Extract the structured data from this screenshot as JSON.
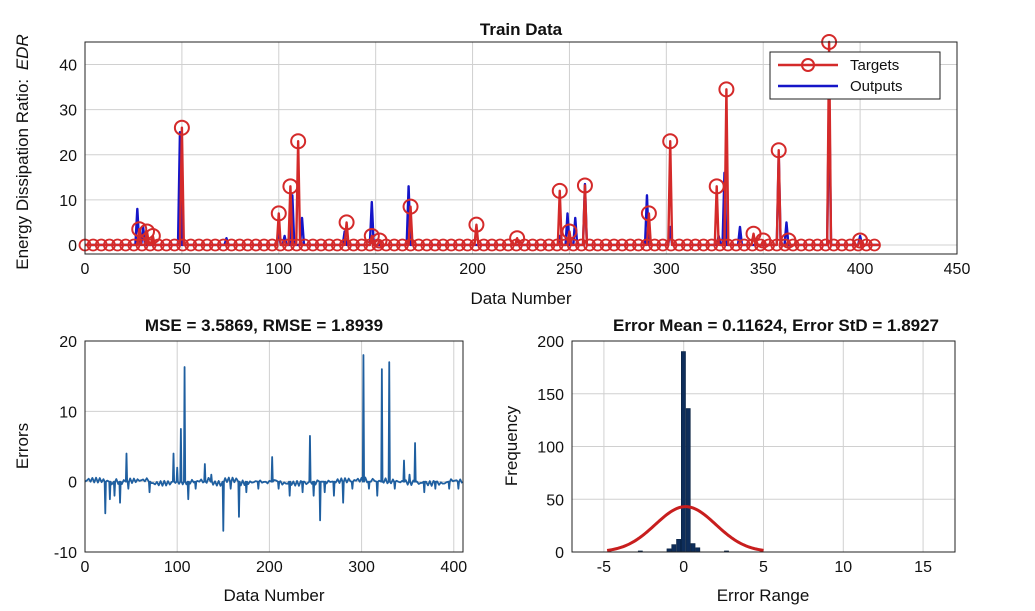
{
  "colors": {
    "targets": "#d42a2a",
    "outputs": "#1515c8",
    "errors": "#1f5fa0",
    "hist": "#0e2d5a",
    "fit": "#c81e1e",
    "grid": "#d0d0d0"
  },
  "chart_data": [
    {
      "type": "line",
      "title": "Train Data",
      "xlabel": "Data Number",
      "ylabel": "Energy Dissipation Ratio:",
      "ylabel_symbol": "EDR",
      "xlim": [
        0,
        450
      ],
      "ylim": [
        -2,
        45
      ],
      "xticks": [
        "0",
        "50",
        "100",
        "150",
        "200",
        "250",
        "300",
        "350",
        "400",
        "450"
      ],
      "yticks": [
        "0",
        "10",
        "20",
        "30",
        "40"
      ],
      "grid": true,
      "legend_position": "top-right",
      "series": [
        {
          "name": "Targets",
          "marker": "circle",
          "points": [
            [
              28,
              3.5
            ],
            [
              32,
              3
            ],
            [
              35,
              2
            ],
            [
              50,
              26
            ],
            [
              100,
              7
            ],
            [
              106,
              13
            ],
            [
              110,
              23
            ],
            [
              135,
              5
            ],
            [
              148,
              2
            ],
            [
              152,
              1
            ],
            [
              168,
              8.5
            ],
            [
              202,
              4.5
            ],
            [
              223,
              1.5
            ],
            [
              245,
              12
            ],
            [
              250,
              3
            ],
            [
              258,
              13.2
            ],
            [
              291,
              7
            ],
            [
              302,
              23
            ],
            [
              326,
              13
            ],
            [
              331,
              34.5
            ],
            [
              345,
              2.5
            ],
            [
              350,
              1
            ],
            [
              358,
              21
            ],
            [
              363,
              1
            ],
            [
              384,
              45
            ],
            [
              400,
              1
            ]
          ]
        },
        {
          "name": "Outputs",
          "points": [
            [
              27,
              8
            ],
            [
              30,
              4
            ],
            [
              49,
              25
            ],
            [
              73,
              1.5
            ],
            [
              100,
              3
            ],
            [
              103,
              2
            ],
            [
              107,
              11
            ],
            [
              112,
              6
            ],
            [
              134,
              3
            ],
            [
              148,
              9.5
            ],
            [
              167,
              13
            ],
            [
              245,
              2
            ],
            [
              249,
              7
            ],
            [
              253,
              6
            ],
            [
              258,
              13.5
            ],
            [
              290,
              11
            ],
            [
              302,
              4
            ],
            [
              327,
              2
            ],
            [
              330,
              16
            ],
            [
              338,
              4
            ],
            [
              358,
              20
            ],
            [
              362,
              5
            ],
            [
              384,
              35
            ],
            [
              400,
              2
            ]
          ]
        }
      ]
    },
    {
      "type": "line",
      "title": "MSE = 3.5869, RMSE = 1.8939",
      "xlabel": "Data Number",
      "ylabel": "Errors",
      "xlim": [
        0,
        410
      ],
      "ylim": [
        -10,
        20
      ],
      "xticks": [
        "0",
        "100",
        "200",
        "300",
        "400"
      ],
      "yticks": [
        "-10",
        "0",
        "10",
        "20"
      ],
      "grid": true,
      "series": [
        {
          "points": [
            [
              22,
              -4.5
            ],
            [
              27,
              -2.5
            ],
            [
              32,
              -2
            ],
            [
              38,
              -3
            ],
            [
              45,
              4
            ],
            [
              47,
              -1
            ],
            [
              70,
              -1.5
            ],
            [
              96,
              4
            ],
            [
              100,
              2
            ],
            [
              104,
              7.5
            ],
            [
              108,
              16.3
            ],
            [
              112,
              -2.5
            ],
            [
              120,
              -1
            ],
            [
              130,
              2.5
            ],
            [
              137,
              1
            ],
            [
              150,
              -7
            ],
            [
              158,
              -1
            ],
            [
              167,
              -5
            ],
            [
              175,
              -1.5
            ],
            [
              188,
              -1
            ],
            [
              203,
              3.5
            ],
            [
              210,
              -1
            ],
            [
              222,
              -2
            ],
            [
              236,
              -1.5
            ],
            [
              244,
              6.5
            ],
            [
              248,
              -2
            ],
            [
              255,
              -5.5
            ],
            [
              260,
              -1.5
            ],
            [
              270,
              -2
            ],
            [
              280,
              -3
            ],
            [
              290,
              -1
            ],
            [
              302,
              18
            ],
            [
              308,
              -1
            ],
            [
              317,
              -2
            ],
            [
              322,
              16
            ],
            [
              330,
              17
            ],
            [
              336,
              -1
            ],
            [
              346,
              3
            ],
            [
              352,
              1
            ],
            [
              358,
              5.5
            ],
            [
              368,
              -1.5
            ],
            [
              380,
              -1
            ],
            [
              395,
              -1
            ],
            [
              405,
              -1
            ]
          ]
        }
      ]
    },
    {
      "type": "bar",
      "title": "Error Mean = 0.11624, Error StD = 1.8927",
      "xlabel": "Error Range",
      "ylabel": "Frequency",
      "xlim": [
        -7,
        17
      ],
      "ylim": [
        0,
        200
      ],
      "xticks": [
        "-5",
        "0",
        "5",
        "10",
        "15"
      ],
      "yticks": [
        "0",
        "50",
        "100",
        "150",
        "200"
      ],
      "grid": true,
      "bins": [
        {
          "center": -2.7,
          "value": 1
        },
        {
          "center": -0.9,
          "value": 3
        },
        {
          "center": -0.6,
          "value": 7
        },
        {
          "center": -0.3,
          "value": 12
        },
        {
          "center": 0.0,
          "value": 190
        },
        {
          "center": 0.3,
          "value": 136
        },
        {
          "center": 0.6,
          "value": 8
        },
        {
          "center": 0.9,
          "value": 4
        },
        {
          "center": 2.7,
          "value": 1
        }
      ],
      "normal_fit": {
        "mean": 0.11624,
        "std": 1.8927,
        "peak": 43
      }
    }
  ]
}
